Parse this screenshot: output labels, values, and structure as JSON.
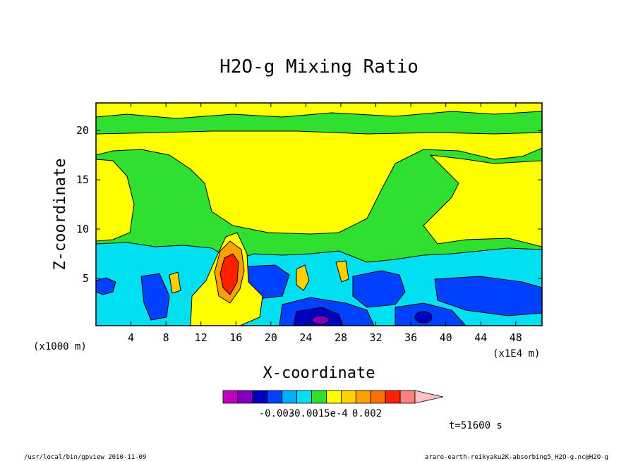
{
  "chart_data": {
    "type": "heatmap",
    "title": "H2O-g Mixing Ratio",
    "xlabel": "X-coordinate",
    "ylabel": "Z-coordinate",
    "x_unit_left": "(x1000 m)",
    "x_unit_right": "(x1E4 m)",
    "x_ticks": [
      "4",
      "8",
      "12",
      "16",
      "20",
      "24",
      "28",
      "32",
      "36",
      "40",
      "44",
      "48"
    ],
    "x_tick_values": [
      4,
      8,
      12,
      16,
      20,
      24,
      28,
      32,
      36,
      40,
      44,
      48
    ],
    "y_ticks": [
      "5",
      "10",
      "15",
      "20"
    ],
    "y_tick_values": [
      5,
      10,
      15,
      20
    ],
    "xlim": [
      0,
      51
    ],
    "ylim": [
      0.2,
      22.8
    ],
    "colorbar": {
      "colors": [
        "#c000c0",
        "#8000c0",
        "#0000c0",
        "#0040ff",
        "#00b0ff",
        "#00e0f0",
        "#30e030",
        "#ffff00",
        "#ffd000",
        "#ffa000",
        "#ff7000",
        "#ff2000",
        "#ff8080",
        "#ffc0c0"
      ],
      "tick_labels": [
        "-0.003",
        "-0.001",
        "5e-4",
        "0.002"
      ]
    },
    "time_label": "t=51600 s"
  },
  "footer": {
    "left": "/usr/local/bin/gpview   2010-11-09",
    "right": "arare-earth-reikyaku2K-absorbing5_H2O-g.nc@H2O-g"
  }
}
